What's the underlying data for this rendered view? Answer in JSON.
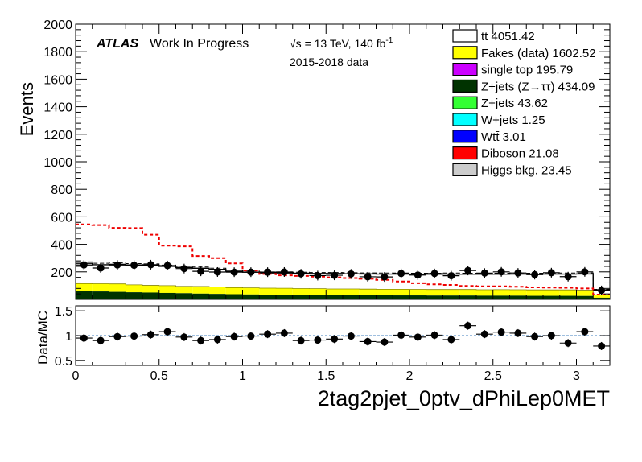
{
  "chart_data": {
    "type": "bar",
    "x_axis": {
      "label": "2tag2pjet_0ptv_dPhiLep0MET",
      "range": [
        0,
        3.2
      ],
      "ticks": [
        0,
        0.5,
        1,
        1.5,
        2,
        2.5,
        3
      ],
      "tick_labels": [
        "0",
        "0.5",
        "1",
        "1.5",
        "2",
        "2.5",
        "3"
      ]
    },
    "main_panel": {
      "ylabel": "Events",
      "ylim": [
        0,
        2000
      ],
      "ticks": [
        200,
        400,
        600,
        800,
        1000,
        1200,
        1400,
        1600,
        1800,
        2000
      ],
      "tick_labels": [
        "200",
        "400",
        "600",
        "800",
        "1000",
        "1200",
        "1400",
        "1600",
        "1800",
        "2000"
      ]
    },
    "ratio_panel": {
      "ylabel": "Data/MC",
      "ylim": [
        0.4,
        1.6
      ],
      "ticks": [
        0.5,
        1,
        1.5
      ],
      "tick_labels": [
        "0.5",
        "1",
        "1.5"
      ]
    },
    "annotations": {
      "atlas": "ATLAS",
      "status": "Work In Progress",
      "energy": "√s = 13 TeV, 140 fb",
      "energy_sup": "-1",
      "data_period": "2015-2018 data"
    },
    "legend_position": "top-right",
    "legend": [
      {
        "label": "tt̄ 4051.42",
        "color": "#ffffff"
      },
      {
        "label": "Fakes (data) 1602.52",
        "color": "#ffff00"
      },
      {
        "label": "single top 195.79",
        "color": "#cc00ff"
      },
      {
        "label": "Z+jets (Z→ττ) 434.09",
        "color": "#003300"
      },
      {
        "label": "Z+jets 43.62",
        "color": "#33ff33"
      },
      {
        "label": "W+jets 1.25",
        "color": "#00ffff"
      },
      {
        "label": "Wtt̄ 3.01",
        "color": "#0000ff"
      },
      {
        "label": "Diboson 21.08",
        "color": "#ff0000"
      },
      {
        "label": "Higgs bkg. 23.45",
        "color": "#cccccc"
      }
    ],
    "bins": [
      0,
      0.1,
      0.2,
      0.3,
      0.4,
      0.5,
      0.6,
      0.7,
      0.8,
      0.9,
      1.0,
      1.1,
      1.2,
      1.3,
      1.4,
      1.5,
      1.6,
      1.7,
      1.8,
      1.9,
      2.0,
      2.1,
      2.2,
      2.3,
      2.4,
      2.5,
      2.6,
      2.7,
      2.8,
      2.9,
      3.0,
      3.1,
      3.2
    ],
    "stack": {
      "zjets_tautau": [
        60,
        58,
        55,
        52,
        50,
        47,
        45,
        42,
        40,
        38,
        36,
        35,
        34,
        33,
        32,
        31,
        31,
        30,
        30,
        29,
        29,
        28,
        28,
        28,
        27,
        27,
        27,
        26,
        26,
        26,
        25,
        12
      ],
      "fakes": [
        55,
        56,
        58,
        54,
        52,
        53,
        50,
        52,
        50,
        48,
        48,
        47,
        47,
        46,
        46,
        45,
        45,
        45,
        44,
        45,
        44,
        44,
        44,
        44,
        43,
        44,
        43,
        43,
        43,
        43,
        42,
        20
      ],
      "ttbar_total": [
        262,
        252,
        255,
        250,
        248,
        240,
        232,
        226,
        218,
        205,
        198,
        192,
        192,
        190,
        188,
        188,
        186,
        185,
        184,
        184,
        183,
        183,
        184,
        183,
        183,
        183,
        184,
        183,
        184,
        184,
        185,
        70
      ]
    },
    "data": [
      250,
      228,
      250,
      248,
      252,
      246,
      224,
      204,
      199,
      198,
      198,
      198,
      199,
      186,
      173,
      175,
      185,
      164,
      163,
      188,
      177,
      188,
      172,
      210,
      191,
      200,
      192,
      180,
      194,
      165,
      200,
      65
    ],
    "signal_dashed": [
      545,
      540,
      520,
      518,
      470,
      390,
      385,
      315,
      300,
      262,
      210,
      185,
      175,
      170,
      165,
      160,
      155,
      150,
      142,
      130,
      118,
      110,
      105,
      98,
      95,
      95,
      92,
      88,
      86,
      85,
      80,
      35
    ],
    "ratio": [
      0.95,
      0.9,
      0.98,
      0.99,
      1.02,
      1.08,
      0.97,
      0.9,
      0.92,
      0.98,
      0.99,
      1.03,
      1.05,
      0.9,
      0.91,
      0.93,
      0.99,
      0.88,
      0.87,
      1.01,
      0.97,
      1.01,
      0.92,
      1.2,
      1.03,
      1.07,
      1.05,
      0.98,
      1.0,
      0.85,
      1.08,
      0.79
    ]
  }
}
